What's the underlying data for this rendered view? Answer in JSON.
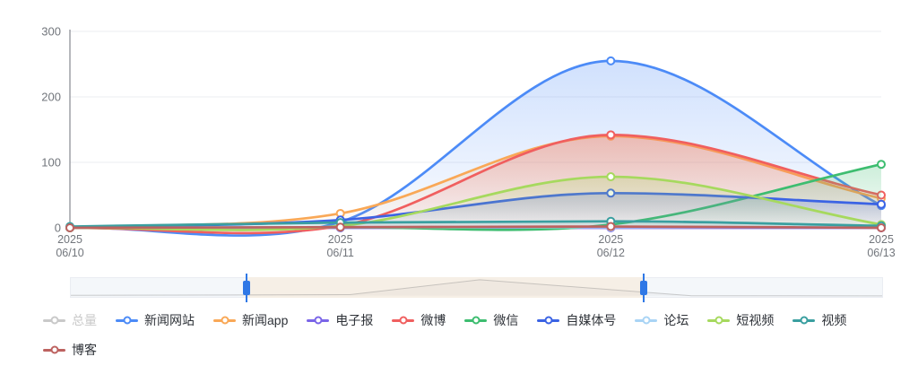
{
  "chart_data": {
    "type": "line",
    "smooth": true,
    "grid": true,
    "legend_position": "bottom",
    "x_categories": [
      [
        "2025",
        "06/10"
      ],
      [
        "2025",
        "06/11"
      ],
      [
        "2025",
        "06/12"
      ],
      [
        "2025",
        "06/13"
      ]
    ],
    "ylim": [
      0,
      300
    ],
    "y_ticks": [
      0,
      100,
      200,
      300
    ],
    "series": [
      {
        "name": "总量",
        "color": "#c9c9c9",
        "disabled": true,
        "values": null
      },
      {
        "name": "新闻网站",
        "color": "#4c8bf7",
        "disabled": false,
        "values": [
          0,
          9,
          255,
          34
        ]
      },
      {
        "name": "新闻app",
        "color": "#f9a857",
        "disabled": false,
        "values": [
          0,
          22,
          140,
          45
        ]
      },
      {
        "name": "电子报",
        "color": "#7a65e8",
        "disabled": false,
        "values": [
          0,
          0,
          0,
          0
        ]
      },
      {
        "name": "微博",
        "color": "#f05f5f",
        "disabled": false,
        "values": [
          0,
          3,
          142,
          50
        ]
      },
      {
        "name": "微信",
        "color": "#3dbd70",
        "disabled": false,
        "values": [
          0,
          1,
          5,
          97
        ]
      },
      {
        "name": "自媒体号",
        "color": "#3b63e4",
        "disabled": false,
        "values": [
          0,
          12,
          53,
          36
        ]
      },
      {
        "name": "论坛",
        "color": "#a9d4f5",
        "disabled": false,
        "values": [
          0,
          1,
          1,
          1
        ]
      },
      {
        "name": "短视频",
        "color": "#a6d95e",
        "disabled": false,
        "values": [
          0,
          3,
          78,
          5
        ]
      },
      {
        "name": "视频",
        "color": "#3a9fa0",
        "disabled": false,
        "values": [
          2,
          8,
          10,
          3
        ]
      },
      {
        "name": "博客",
        "color": "#bd6260",
        "disabled": false,
        "values": [
          0,
          1,
          2,
          0
        ]
      }
    ],
    "datazoom": {
      "start_pct": 21.7,
      "end_pct": 70.6,
      "handle_color": "#2f78e6",
      "window_color": "#f6efe6",
      "shadow_points": [
        [
          0,
          0.08
        ],
        [
          34.4,
          0.12
        ],
        [
          50.4,
          0.91
        ],
        [
          76.5,
          0.06
        ],
        [
          100,
          0.05
        ]
      ]
    },
    "colors": {
      "axis_line": "#6e7079",
      "axis_label": "#72767c",
      "grid_line": "#ebedf2",
      "legend_text": "#2e3238",
      "legend_disabled": "#c9c9c9"
    }
  }
}
